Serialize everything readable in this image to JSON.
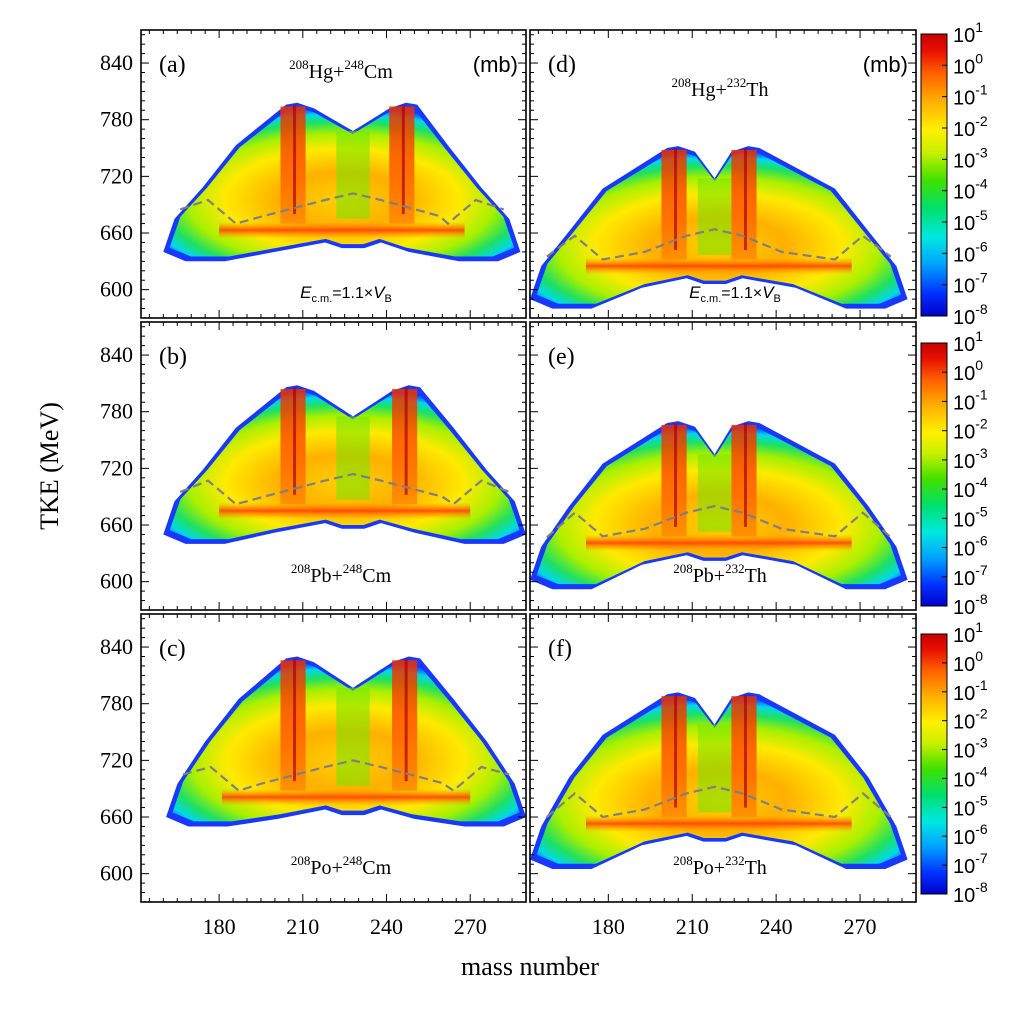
{
  "chart_data": {
    "type": "heatmap",
    "xlabel": "mass number",
    "ylabel": "TKE (MeV)",
    "xlim": [
      152,
      290
    ],
    "ylim": [
      570,
      875
    ],
    "x_ticks": [
      "180",
      "210",
      "240",
      "270"
    ],
    "y_ticks": [
      "600",
      "660",
      "720",
      "780",
      "840"
    ],
    "x_tick_values": [
      180,
      210,
      240,
      270
    ],
    "y_tick_values": [
      600,
      660,
      720,
      780,
      840
    ],
    "colorbar": {
      "scale": "log",
      "unit": "mb",
      "range": [
        1e-08,
        10
      ],
      "labels": [
        {
          "base": "10",
          "exp": "1"
        },
        {
          "base": "10",
          "exp": "0"
        },
        {
          "base": "10",
          "exp": "-1"
        },
        {
          "base": "10",
          "exp": "-2"
        },
        {
          "base": "10",
          "exp": "-3"
        },
        {
          "base": "10",
          "exp": "-4"
        },
        {
          "base": "10",
          "exp": "-5"
        },
        {
          "base": "10",
          "exp": "-6"
        },
        {
          "base": "10",
          "exp": "-7"
        },
        {
          "base": "10",
          "exp": "-8"
        }
      ],
      "colors": [
        "#0000c8",
        "#0030ff",
        "#00a0ff",
        "#00e8e0",
        "#00e070",
        "#40e000",
        "#c8f000",
        "#fff000",
        "#ffb000",
        "#ff6000",
        "#e81000",
        "#c80000"
      ]
    },
    "unit_label": "(mb)",
    "energy_label": {
      "prefix": "E",
      "sub1": "c.m.",
      "mid": "=1.1×V",
      "sub2": "B"
    },
    "panels": [
      {
        "label": "(a)",
        "projectile_mass": "208",
        "projectile": "Hg",
        "target_mass": "248",
        "target": "Cm",
        "sep": "+",
        "xmin": 160,
        "xmax": 288,
        "peak_tke": 798,
        "center_tke": 768,
        "bottom_tke": 630,
        "inner_bottom": 650,
        "peaks": [
          208,
          247
        ],
        "center": 228,
        "show_unit": true,
        "show_energy": true
      },
      {
        "label": "(b)",
        "projectile_mass": "208",
        "projectile": "Pb",
        "target_mass": "248",
        "target": "Cm",
        "sep": "+",
        "xmin": 160,
        "xmax": 290,
        "peak_tke": 808,
        "center_tke": 775,
        "bottom_tke": 640,
        "inner_bottom": 662,
        "peaks": [
          208,
          248
        ],
        "center": 228,
        "show_unit": false,
        "show_energy": false
      },
      {
        "label": "(c)",
        "projectile_mass": "208",
        "projectile": "Po",
        "target_mass": "248",
        "target": "Cm",
        "sep": "+",
        "xmin": 161,
        "xmax": 290,
        "peak_tke": 830,
        "center_tke": 797,
        "bottom_tke": 650,
        "inner_bottom": 668,
        "peaks": [
          208,
          248
        ],
        "center": 228,
        "show_unit": false,
        "show_energy": false
      },
      {
        "label": "(d)",
        "projectile_mass": "208",
        "projectile": "Hg",
        "target_mass": "232",
        "target": "Th",
        "sep": "+",
        "xmin": 152,
        "xmax": 287,
        "peak_tke": 752,
        "center_tke": 718,
        "bottom_tke": 580,
        "inner_bottom": 612,
        "peaks": [
          205,
          230
        ],
        "center": 218,
        "show_unit": true,
        "show_energy": true
      },
      {
        "label": "(e)",
        "projectile_mass": "208",
        "projectile": "Pb",
        "target_mass": "232",
        "target": "Th",
        "sep": "+",
        "xmin": 152,
        "xmax": 287,
        "peak_tke": 770,
        "center_tke": 735,
        "bottom_tke": 592,
        "inner_bottom": 628,
        "peaks": [
          205,
          230
        ],
        "center": 218,
        "show_unit": false,
        "show_energy": false
      },
      {
        "label": "(f)",
        "projectile_mass": "208",
        "projectile": "Po",
        "target_mass": "232",
        "target": "Th",
        "sep": "+",
        "xmin": 152,
        "xmax": 287,
        "peak_tke": 792,
        "center_tke": 758,
        "bottom_tke": 605,
        "inner_bottom": 640,
        "peaks": [
          205,
          230
        ],
        "center": 218,
        "show_unit": false,
        "show_energy": false
      }
    ]
  }
}
